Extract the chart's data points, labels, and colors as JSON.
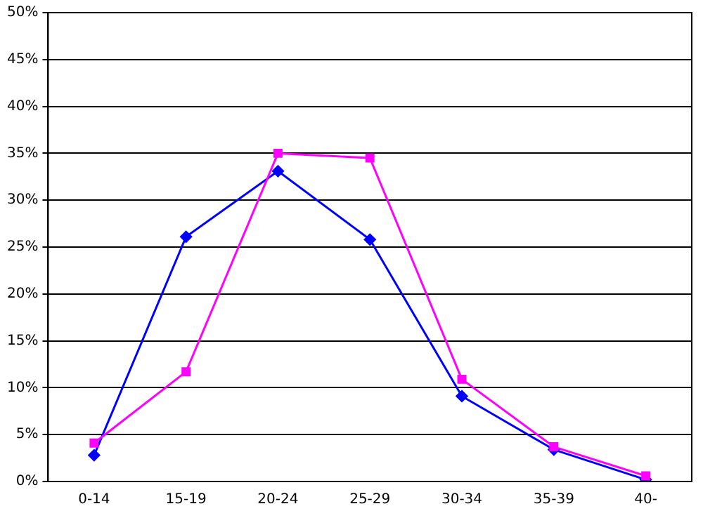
{
  "chart_data": {
    "type": "line",
    "categories": [
      "0-14",
      "15-19",
      "20-24",
      "25-29",
      "30-34",
      "35-39",
      "40-"
    ],
    "series": [
      {
        "color": "#0000ff",
        "marker": "diamond",
        "values": [
          2.8,
          26.1,
          33.1,
          25.8,
          9.1,
          3.4,
          0.2
        ]
      },
      {
        "color": "#ff00ff",
        "marker": "square",
        "values": [
          4.1,
          11.7,
          35.0,
          34.5,
          10.9,
          3.7,
          0.6
        ]
      }
    ],
    "ylim": [
      0,
      50
    ],
    "yticks": [
      {
        "value": 0,
        "label": "0%"
      },
      {
        "value": 5,
        "label": "5%"
      },
      {
        "value": 10,
        "label": "10%"
      },
      {
        "value": 15,
        "label": "15%"
      },
      {
        "value": 20,
        "label": "20%"
      },
      {
        "value": 25,
        "label": "25%"
      },
      {
        "value": 30,
        "label": "30%"
      },
      {
        "value": 35,
        "label": "35%"
      },
      {
        "value": 40,
        "label": "40%"
      },
      {
        "value": 45,
        "label": "45%"
      },
      {
        "value": 50,
        "label": "50%"
      }
    ],
    "grid": "y",
    "legend": false,
    "line_style": "solid"
  }
}
